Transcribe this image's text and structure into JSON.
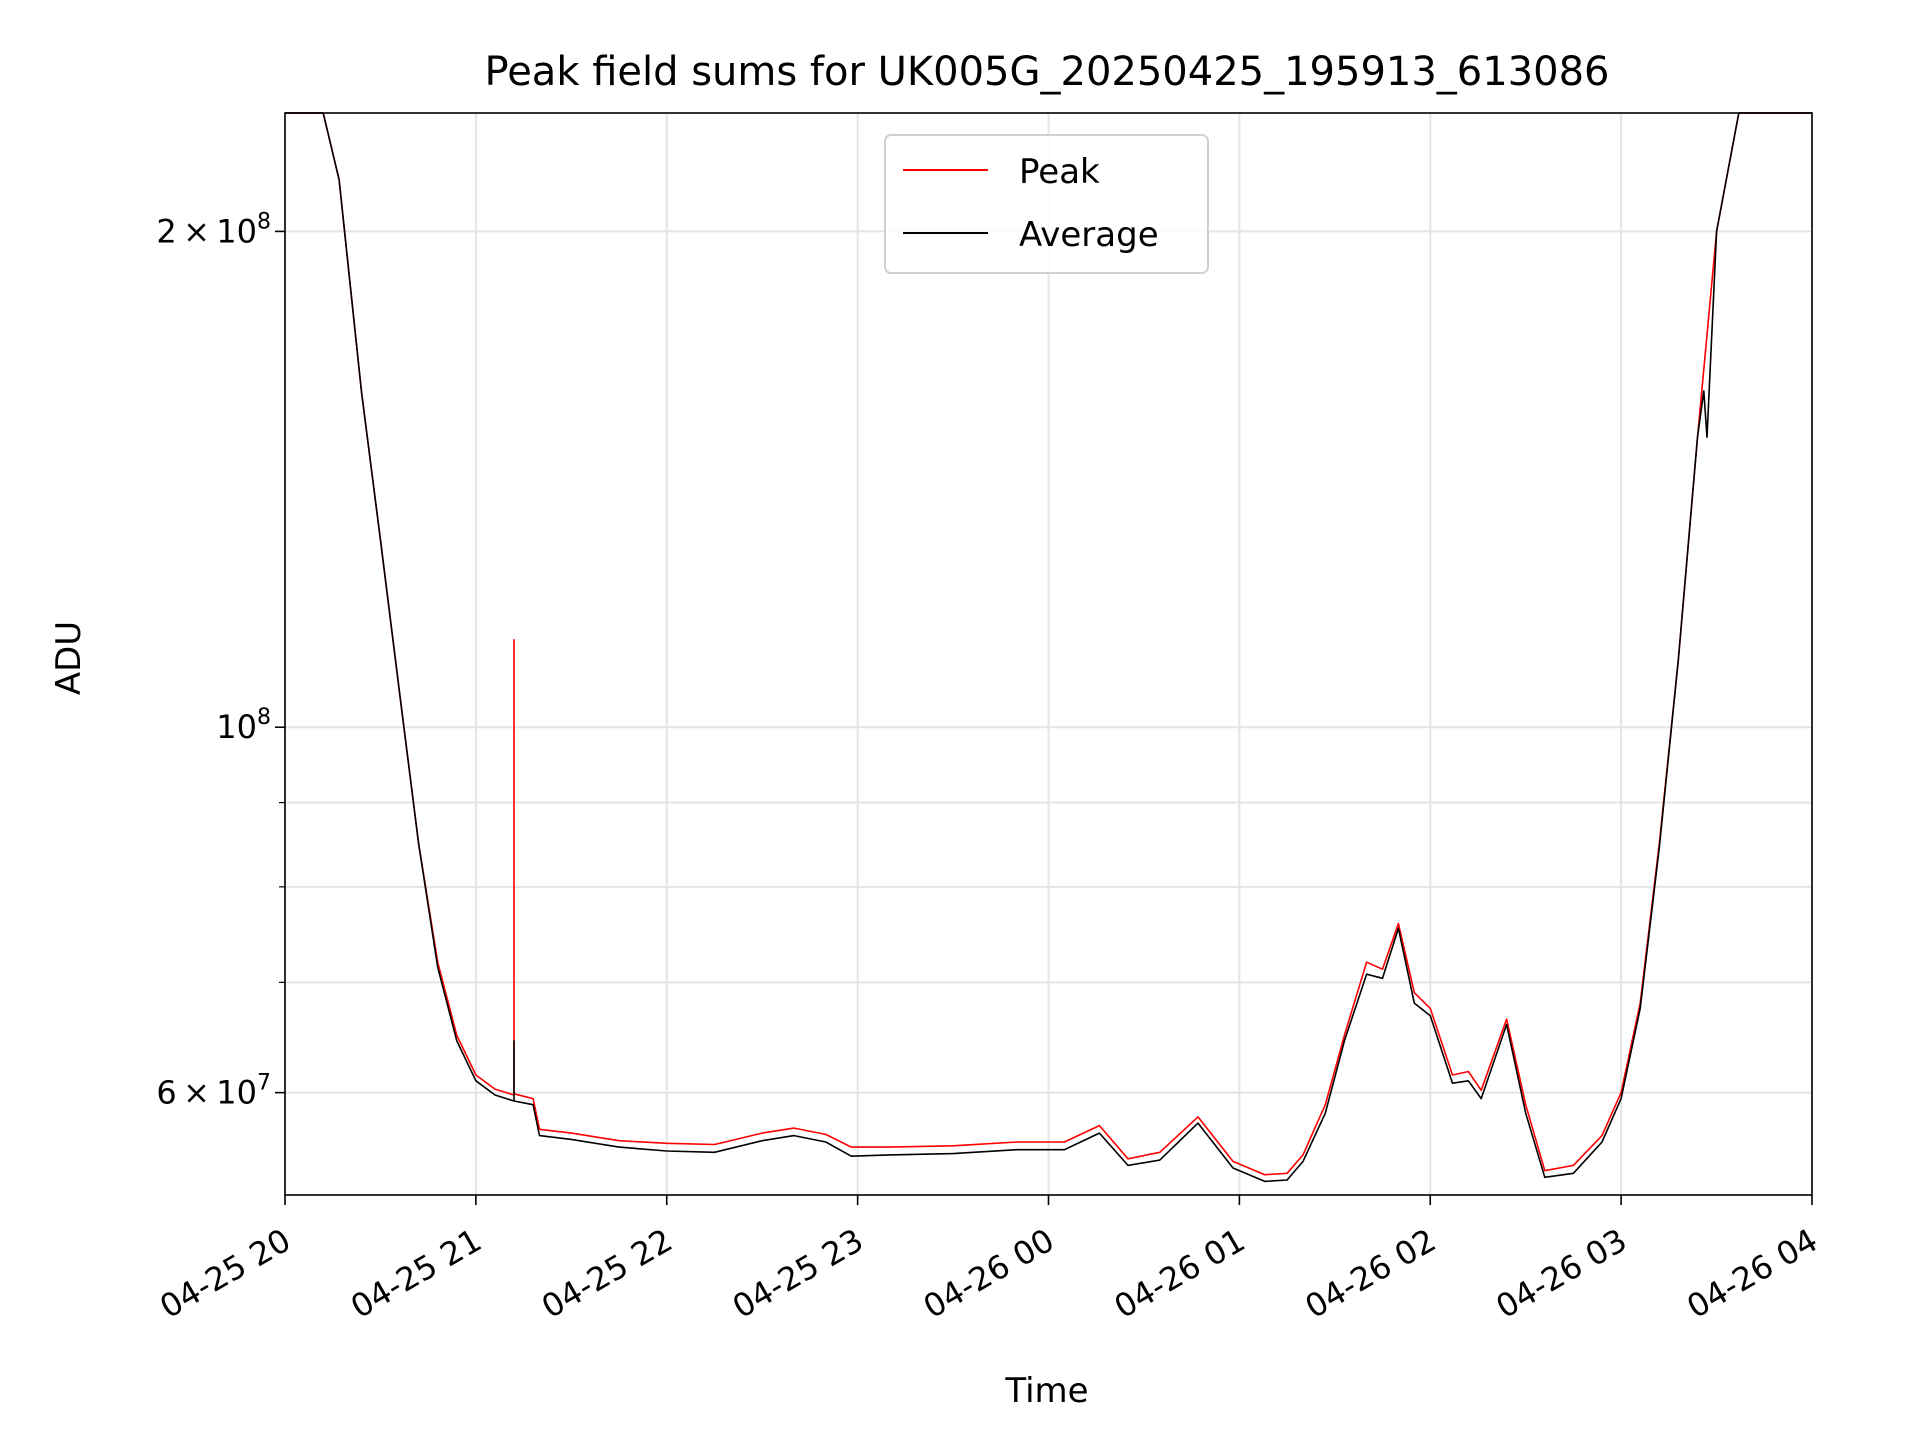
{
  "chart_data": {
    "type": "line",
    "title": "Peak field sums for UK005G_20250425_195913_613086",
    "xlabel": "Time",
    "ylabel": "ADU",
    "yscale": "log",
    "ylim": [
      52000000,
      236000000
    ],
    "xlim": [
      "04-25 20:00",
      "04-26 04:00"
    ],
    "grid": true,
    "legend": {
      "placement": "top-center"
    },
    "x_ticks": [
      {
        "t": "04-25 20:00",
        "label": "04-25 20"
      },
      {
        "t": "04-25 21:00",
        "label": "04-25 21"
      },
      {
        "t": "04-25 22:00",
        "label": "04-25 22"
      },
      {
        "t": "04-25 23:00",
        "label": "04-25 23"
      },
      {
        "t": "04-26 00:00",
        "label": "04-26 00"
      },
      {
        "t": "04-26 01:00",
        "label": "04-26 01"
      },
      {
        "t": "04-26 02:00",
        "label": "04-26 02"
      },
      {
        "t": "04-26 03:00",
        "label": "04-26 03"
      },
      {
        "t": "04-26 04:00",
        "label": "04-26 04"
      }
    ],
    "y_major_ticks": [
      {
        "v": 60000000,
        "base": "6 × 10",
        "exp": "7"
      },
      {
        "v": 100000000,
        "base": "10",
        "exp": "8"
      },
      {
        "v": 200000000,
        "base": "2 × 10",
        "exp": "8"
      }
    ],
    "y_minor_ticks": [
      70000000,
      80000000,
      90000000
    ],
    "series": [
      {
        "name": "Peak",
        "color": "#ff0000",
        "points": [
          [
            "04-25 20:00",
            236000000
          ],
          [
            "04-25 20:12",
            236000000
          ],
          [
            "04-25 20:17",
            215000000
          ],
          [
            "04-25 20:24",
            160000000
          ],
          [
            "04-25 20:30",
            130000000
          ],
          [
            "04-25 20:36",
            105000000
          ],
          [
            "04-25 20:42",
            85000000
          ],
          [
            "04-25 20:48",
            72000000
          ],
          [
            "04-25 20:54",
            65000000
          ],
          [
            "04-25 21:00",
            61500000
          ],
          [
            "04-25 21:06",
            60300000
          ],
          [
            "04-25 21:12",
            59800000
          ],
          [
            "04-25 21:12",
            113000000
          ],
          [
            "04-25 21:12",
            59900000
          ],
          [
            "04-25 21:18",
            59500000
          ],
          [
            "04-25 21:20",
            57000000
          ],
          [
            "04-25 21:30",
            56700000
          ],
          [
            "04-25 21:45",
            56100000
          ],
          [
            "04-25 22:00",
            55900000
          ],
          [
            "04-25 22:15",
            55800000
          ],
          [
            "04-25 22:30",
            56700000
          ],
          [
            "04-25 22:40",
            57100000
          ],
          [
            "04-25 22:50",
            56600000
          ],
          [
            "04-25 22:58",
            55600000
          ],
          [
            "04-25 23:10",
            55600000
          ],
          [
            "04-25 23:30",
            55700000
          ],
          [
            "04-25 23:50",
            56000000
          ],
          [
            "04-26 00:05",
            56000000
          ],
          [
            "04-26 00:16",
            57300000
          ],
          [
            "04-26 00:25",
            54700000
          ],
          [
            "04-26 00:35",
            55200000
          ],
          [
            "04-26 00:47",
            58000000
          ],
          [
            "04-26 00:58",
            54500000
          ],
          [
            "04-26 01:08",
            53500000
          ],
          [
            "04-26 01:15",
            53600000
          ],
          [
            "04-26 01:20",
            55000000
          ],
          [
            "04-26 01:27",
            59000000
          ],
          [
            "04-26 01:33",
            65000000
          ],
          [
            "04-26 01:40",
            72000000
          ],
          [
            "04-26 01:45",
            71300000
          ],
          [
            "04-26 01:50",
            76000000
          ],
          [
            "04-26 01:55",
            69000000
          ],
          [
            "04-26 02:00",
            67500000
          ],
          [
            "04-26 02:07",
            61500000
          ],
          [
            "04-26 02:12",
            61800000
          ],
          [
            "04-26 02:16",
            60200000
          ],
          [
            "04-26 02:24",
            66500000
          ],
          [
            "04-26 02:30",
            59000000
          ],
          [
            "04-26 02:36",
            53800000
          ],
          [
            "04-26 02:45",
            54200000
          ],
          [
            "04-26 02:54",
            56500000
          ],
          [
            "04-26 03:00",
            60000000
          ],
          [
            "04-26 03:06",
            68000000
          ],
          [
            "04-26 03:12",
            85000000
          ],
          [
            "04-26 03:18",
            110000000
          ],
          [
            "04-26 03:24",
            150000000
          ],
          [
            "04-26 03:30",
            200000000
          ],
          [
            "04-26 03:37",
            236000000
          ],
          [
            "04-26 04:00",
            236000000
          ]
        ]
      },
      {
        "name": "Average",
        "color": "#000000",
        "points": [
          [
            "04-25 20:00",
            236000000
          ],
          [
            "04-25 20:12",
            236000000
          ],
          [
            "04-25 20:17",
            215000000
          ],
          [
            "04-25 20:24",
            160000000
          ],
          [
            "04-25 20:30",
            130000000
          ],
          [
            "04-25 20:36",
            105000000
          ],
          [
            "04-25 20:42",
            85000000
          ],
          [
            "04-25 20:48",
            71500000
          ],
          [
            "04-25 20:54",
            64500000
          ],
          [
            "04-25 21:00",
            61000000
          ],
          [
            "04-25 21:06",
            59800000
          ],
          [
            "04-25 21:12",
            59300000
          ],
          [
            "04-25 21:12",
            64500000
          ],
          [
            "04-25 21:12",
            59300000
          ],
          [
            "04-25 21:18",
            59000000
          ],
          [
            "04-25 21:20",
            56500000
          ],
          [
            "04-25 21:30",
            56200000
          ],
          [
            "04-25 21:45",
            55600000
          ],
          [
            "04-25 22:00",
            55300000
          ],
          [
            "04-25 22:15",
            55200000
          ],
          [
            "04-25 22:30",
            56100000
          ],
          [
            "04-25 22:40",
            56500000
          ],
          [
            "04-25 22:50",
            56000000
          ],
          [
            "04-25 22:58",
            54900000
          ],
          [
            "04-25 23:10",
            55000000
          ],
          [
            "04-25 23:30",
            55100000
          ],
          [
            "04-25 23:50",
            55400000
          ],
          [
            "04-26 00:05",
            55400000
          ],
          [
            "04-26 00:16",
            56700000
          ],
          [
            "04-26 00:25",
            54200000
          ],
          [
            "04-26 00:35",
            54600000
          ],
          [
            "04-26 00:47",
            57500000
          ],
          [
            "04-26 00:58",
            54000000
          ],
          [
            "04-26 01:08",
            53000000
          ],
          [
            "04-26 01:15",
            53100000
          ],
          [
            "04-26 01:20",
            54500000
          ],
          [
            "04-26 01:27",
            58300000
          ],
          [
            "04-26 01:33",
            64500000
          ],
          [
            "04-26 01:40",
            70800000
          ],
          [
            "04-26 01:45",
            70400000
          ],
          [
            "04-26 01:50",
            75500000
          ],
          [
            "04-26 01:55",
            68000000
          ],
          [
            "04-26 02:00",
            66800000
          ],
          [
            "04-26 02:07",
            60800000
          ],
          [
            "04-26 02:12",
            61000000
          ],
          [
            "04-26 02:16",
            59500000
          ],
          [
            "04-26 02:24",
            66000000
          ],
          [
            "04-26 02:30",
            58300000
          ],
          [
            "04-26 02:36",
            53300000
          ],
          [
            "04-26 02:45",
            53600000
          ],
          [
            "04-26 02:54",
            56000000
          ],
          [
            "04-26 03:00",
            59500000
          ],
          [
            "04-26 03:06",
            67500000
          ],
          [
            "04-26 03:12",
            84500000
          ],
          [
            "04-26 03:18",
            110000000
          ],
          [
            "04-26 03:24",
            150000000
          ],
          [
            "04-26 03:26",
            160000000
          ],
          [
            "04-26 03:27",
            150000000
          ],
          [
            "04-26 03:30",
            200000000
          ],
          [
            "04-26 03:37",
            236000000
          ],
          [
            "04-26 04:00",
            236000000
          ]
        ]
      }
    ]
  }
}
